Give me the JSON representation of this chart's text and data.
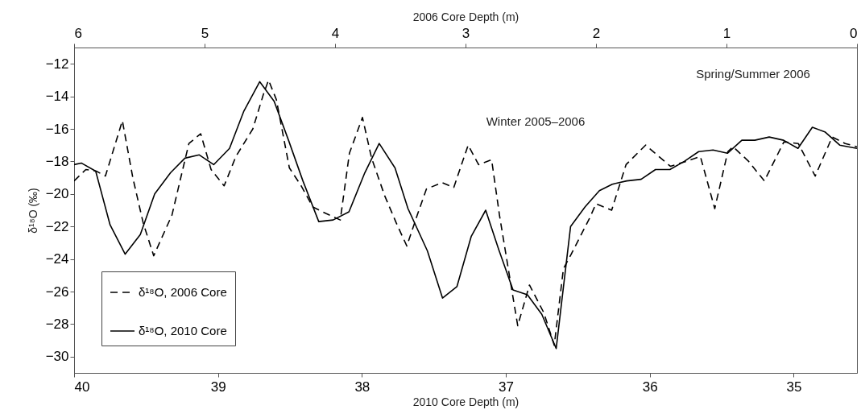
{
  "chart_data": {
    "type": "line",
    "xlabel": "2010 Core Depth (m)",
    "x2label": "2006 Core Depth (m)",
    "ylabel": "δ¹⁸O (‰)",
    "xlim": [
      40,
      34.56
    ],
    "xticks": [
      40,
      39,
      38,
      37,
      36,
      35
    ],
    "x2lim": [
      6,
      0
    ],
    "x2ticks": [
      6,
      5,
      4,
      3,
      2,
      1,
      0
    ],
    "ylim": [
      -31,
      -11
    ],
    "yticks": [
      -30,
      -28,
      -26,
      -24,
      -22,
      -20,
      -18,
      -16,
      -14,
      -12
    ],
    "legend": "bottom left",
    "annotations": [
      "Spring/Summer 2006",
      "Winter 2005–2006"
    ],
    "series": [
      {
        "name": "δ¹⁸O, 2006 Core",
        "color": "#000000",
        "line_style": "dashed",
        "axis": "x2",
        "x": [
          6.0,
          5.91,
          5.83,
          5.76,
          5.63,
          5.55,
          5.47,
          5.39,
          5.25,
          5.15,
          5.12,
          5.03,
          4.95,
          4.85,
          4.76,
          4.63,
          4.55,
          4.51,
          4.45,
          4.35,
          4.26,
          4.17,
          4.07,
          3.96,
          3.89,
          3.79,
          3.72,
          3.62,
          3.53,
          3.45,
          3.37,
          3.3,
          3.18,
          3.09,
          2.98,
          2.9,
          2.8,
          2.74,
          2.66,
          2.6,
          2.51,
          2.4,
          2.32,
          2.25,
          2.19,
          2.05,
          2.0,
          1.88,
          1.77,
          1.62,
          1.43,
          1.31,
          1.2,
          1.09,
          0.99,
          0.95,
          0.83,
          0.71,
          0.56,
          0.45,
          0.32,
          0.19,
          0.09,
          0
        ],
        "values": [
          -19.2,
          -18.5,
          -18.6,
          -18.9,
          -15.5,
          -19.0,
          -21.8,
          -23.8,
          -21.3,
          -17.9,
          -16.9,
          -16.3,
          -18.5,
          -19.5,
          -17.7,
          -16.0,
          -13.9,
          -13.0,
          -14.2,
          -18.4,
          -19.5,
          -20.8,
          -21.2,
          -21.6,
          -17.5,
          -15.3,
          -17.8,
          -20.1,
          -21.8,
          -23.2,
          -21.3,
          -19.7,
          -19.3,
          -19.6,
          -17.0,
          -18.2,
          -17.9,
          -21.3,
          -25.2,
          -28.1,
          -25.6,
          -27.3,
          -29.3,
          -24.6,
          -23.7,
          -21.5,
          -20.6,
          -21.0,
          -18.2,
          -17.0,
          -18.3,
          -18.0,
          -17.7,
          -20.9,
          -17.4,
          -17.1,
          -18.0,
          -19.2,
          -16.8,
          -16.9,
          -18.9,
          -16.5,
          -16.9,
          -17.1
        ]
      },
      {
        "name": "δ¹⁸O, 2010 Core",
        "color": "#000000",
        "line_style": "solid",
        "x": [
          40.0,
          39.95,
          39.85,
          39.75,
          39.645,
          39.54,
          39.44,
          39.33,
          39.23,
          39.13,
          39.03,
          38.92,
          38.82,
          38.71,
          38.61,
          38.51,
          38.41,
          38.3,
          38.2,
          38.09,
          37.98,
          37.88,
          37.77,
          37.68,
          37.545,
          37.44,
          37.34,
          37.24,
          37.14,
          37.05,
          36.95,
          36.85,
          36.75,
          36.65,
          36.55,
          36.45,
          36.35,
          36.26,
          36.16,
          36.06,
          35.96,
          35.86,
          35.76,
          35.66,
          35.56,
          35.46,
          35.36,
          35.27,
          35.17,
          35.07,
          34.97,
          34.87,
          34.78,
          34.68,
          34.56
        ],
        "values": [
          -18.2,
          -18.1,
          -18.6,
          -21.9,
          -23.7,
          -22.5,
          -20.0,
          -18.7,
          -17.8,
          -17.6,
          -18.2,
          -17.2,
          -14.9,
          -13.1,
          -14.3,
          -16.7,
          -19.2,
          -21.7,
          -21.6,
          -21.1,
          -18.7,
          -16.9,
          -18.4,
          -20.9,
          -23.5,
          -26.4,
          -25.7,
          -22.6,
          -21.0,
          -23.4,
          -25.9,
          -26.2,
          -27.4,
          -29.5,
          -22.0,
          -20.8,
          -19.8,
          -19.4,
          -19.2,
          -19.1,
          -18.5,
          -18.5,
          -18.0,
          -17.4,
          -17.3,
          -17.5,
          -16.7,
          -16.7,
          -16.5,
          -16.7,
          -17.2,
          -15.9,
          -16.2,
          -17.0,
          -17.2
        ]
      }
    ]
  }
}
